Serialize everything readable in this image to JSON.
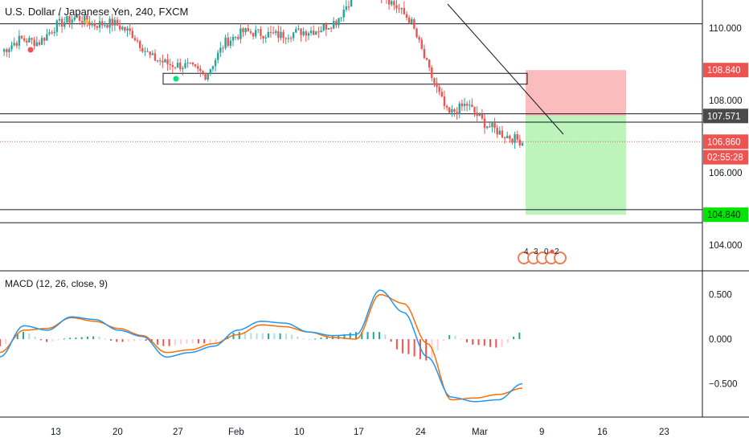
{
  "header": {
    "title": "U.S. Dollar / Japanese Yen, 240, FXCM"
  },
  "macd": {
    "title": "MACD (12, 26, close, 9)"
  },
  "colors": {
    "up": "#26a69a",
    "down": "#ef5350",
    "macd_line": "#2196f3",
    "signal_line": "#ff6d00",
    "hist_up_strong": "#26a69a",
    "hist_up_weak": "#b2dfdb",
    "hist_down_strong": "#ef5350",
    "hist_down_weak": "#ffcdd2",
    "stop_zone": "#f8a5a5",
    "target_zone": "#a5f0a5",
    "last_price_label": "#ef5350",
    "entry_label": "#4a4a4a",
    "target_label": "#00e600"
  },
  "chart_data": [
    {
      "type": "candlestick",
      "title": "U.S. Dollar / Japanese Yen, 240, FXCM",
      "ylim": [
        103.2,
        111.5
      ],
      "y_ticks": [
        "110.000",
        "108.000",
        "106.000",
        "104.000"
      ],
      "x_ticks": [
        "13",
        "20",
        "27",
        "Feb",
        "10",
        "17",
        "24",
        "Mar",
        "9",
        "16",
        "23"
      ],
      "closes_sampled": [
        109.35,
        109.7,
        109.6,
        110.1,
        110.3,
        110.1,
        110.15,
        109.85,
        109.2,
        109.0,
        108.95,
        108.7,
        109.6,
        109.9,
        109.85,
        109.8,
        109.9,
        109.95,
        110.2,
        111.0,
        111.2,
        110.7,
        110.2,
        108.8,
        107.6,
        107.9,
        107.35,
        107.05,
        106.86
      ],
      "horizontal_levels": [
        110.82,
        110.12,
        107.63,
        107.4,
        104.98,
        104.62
      ],
      "rectangle_zone": [
        108.45,
        108.75
      ],
      "position": {
        "entry": 107.571,
        "stop": 108.84,
        "target": 104.84
      },
      "price_labels": [
        {
          "text": "108.840",
          "kind": "stop"
        },
        {
          "text": "107.571",
          "kind": "entry"
        },
        {
          "text": "106.860",
          "kind": "last"
        },
        {
          "text": "02:55:28",
          "kind": "countdown"
        },
        {
          "text": "104.840",
          "kind": "target"
        }
      ],
      "event_markers": [
        "4",
        "3",
        "0",
        "2"
      ]
    },
    {
      "type": "line",
      "title": "MACD (12, 26, close, 9)",
      "ylim": [
        -0.78,
        0.66
      ],
      "y_ticks": [
        "0.500",
        "0.000",
        "−0.500"
      ],
      "series": [
        {
          "role": "macd",
          "values": [
            -0.2,
            0.15,
            0.1,
            0.25,
            0.22,
            0.1,
            0.03,
            -0.2,
            -0.15,
            -0.08,
            0.1,
            0.2,
            0.18,
            0.08,
            0.04,
            0.05,
            0.55,
            0.3,
            -0.2,
            -0.65,
            -0.7,
            -0.68,
            -0.5
          ]
        },
        {
          "role": "signal",
          "values": [
            -0.15,
            0.1,
            0.12,
            0.24,
            0.2,
            0.12,
            0.04,
            -0.15,
            -0.12,
            -0.05,
            0.05,
            0.16,
            0.14,
            0.08,
            0.02,
            0.0,
            0.5,
            0.4,
            -0.05,
            -0.68,
            -0.66,
            -0.62,
            -0.55
          ]
        }
      ]
    }
  ]
}
